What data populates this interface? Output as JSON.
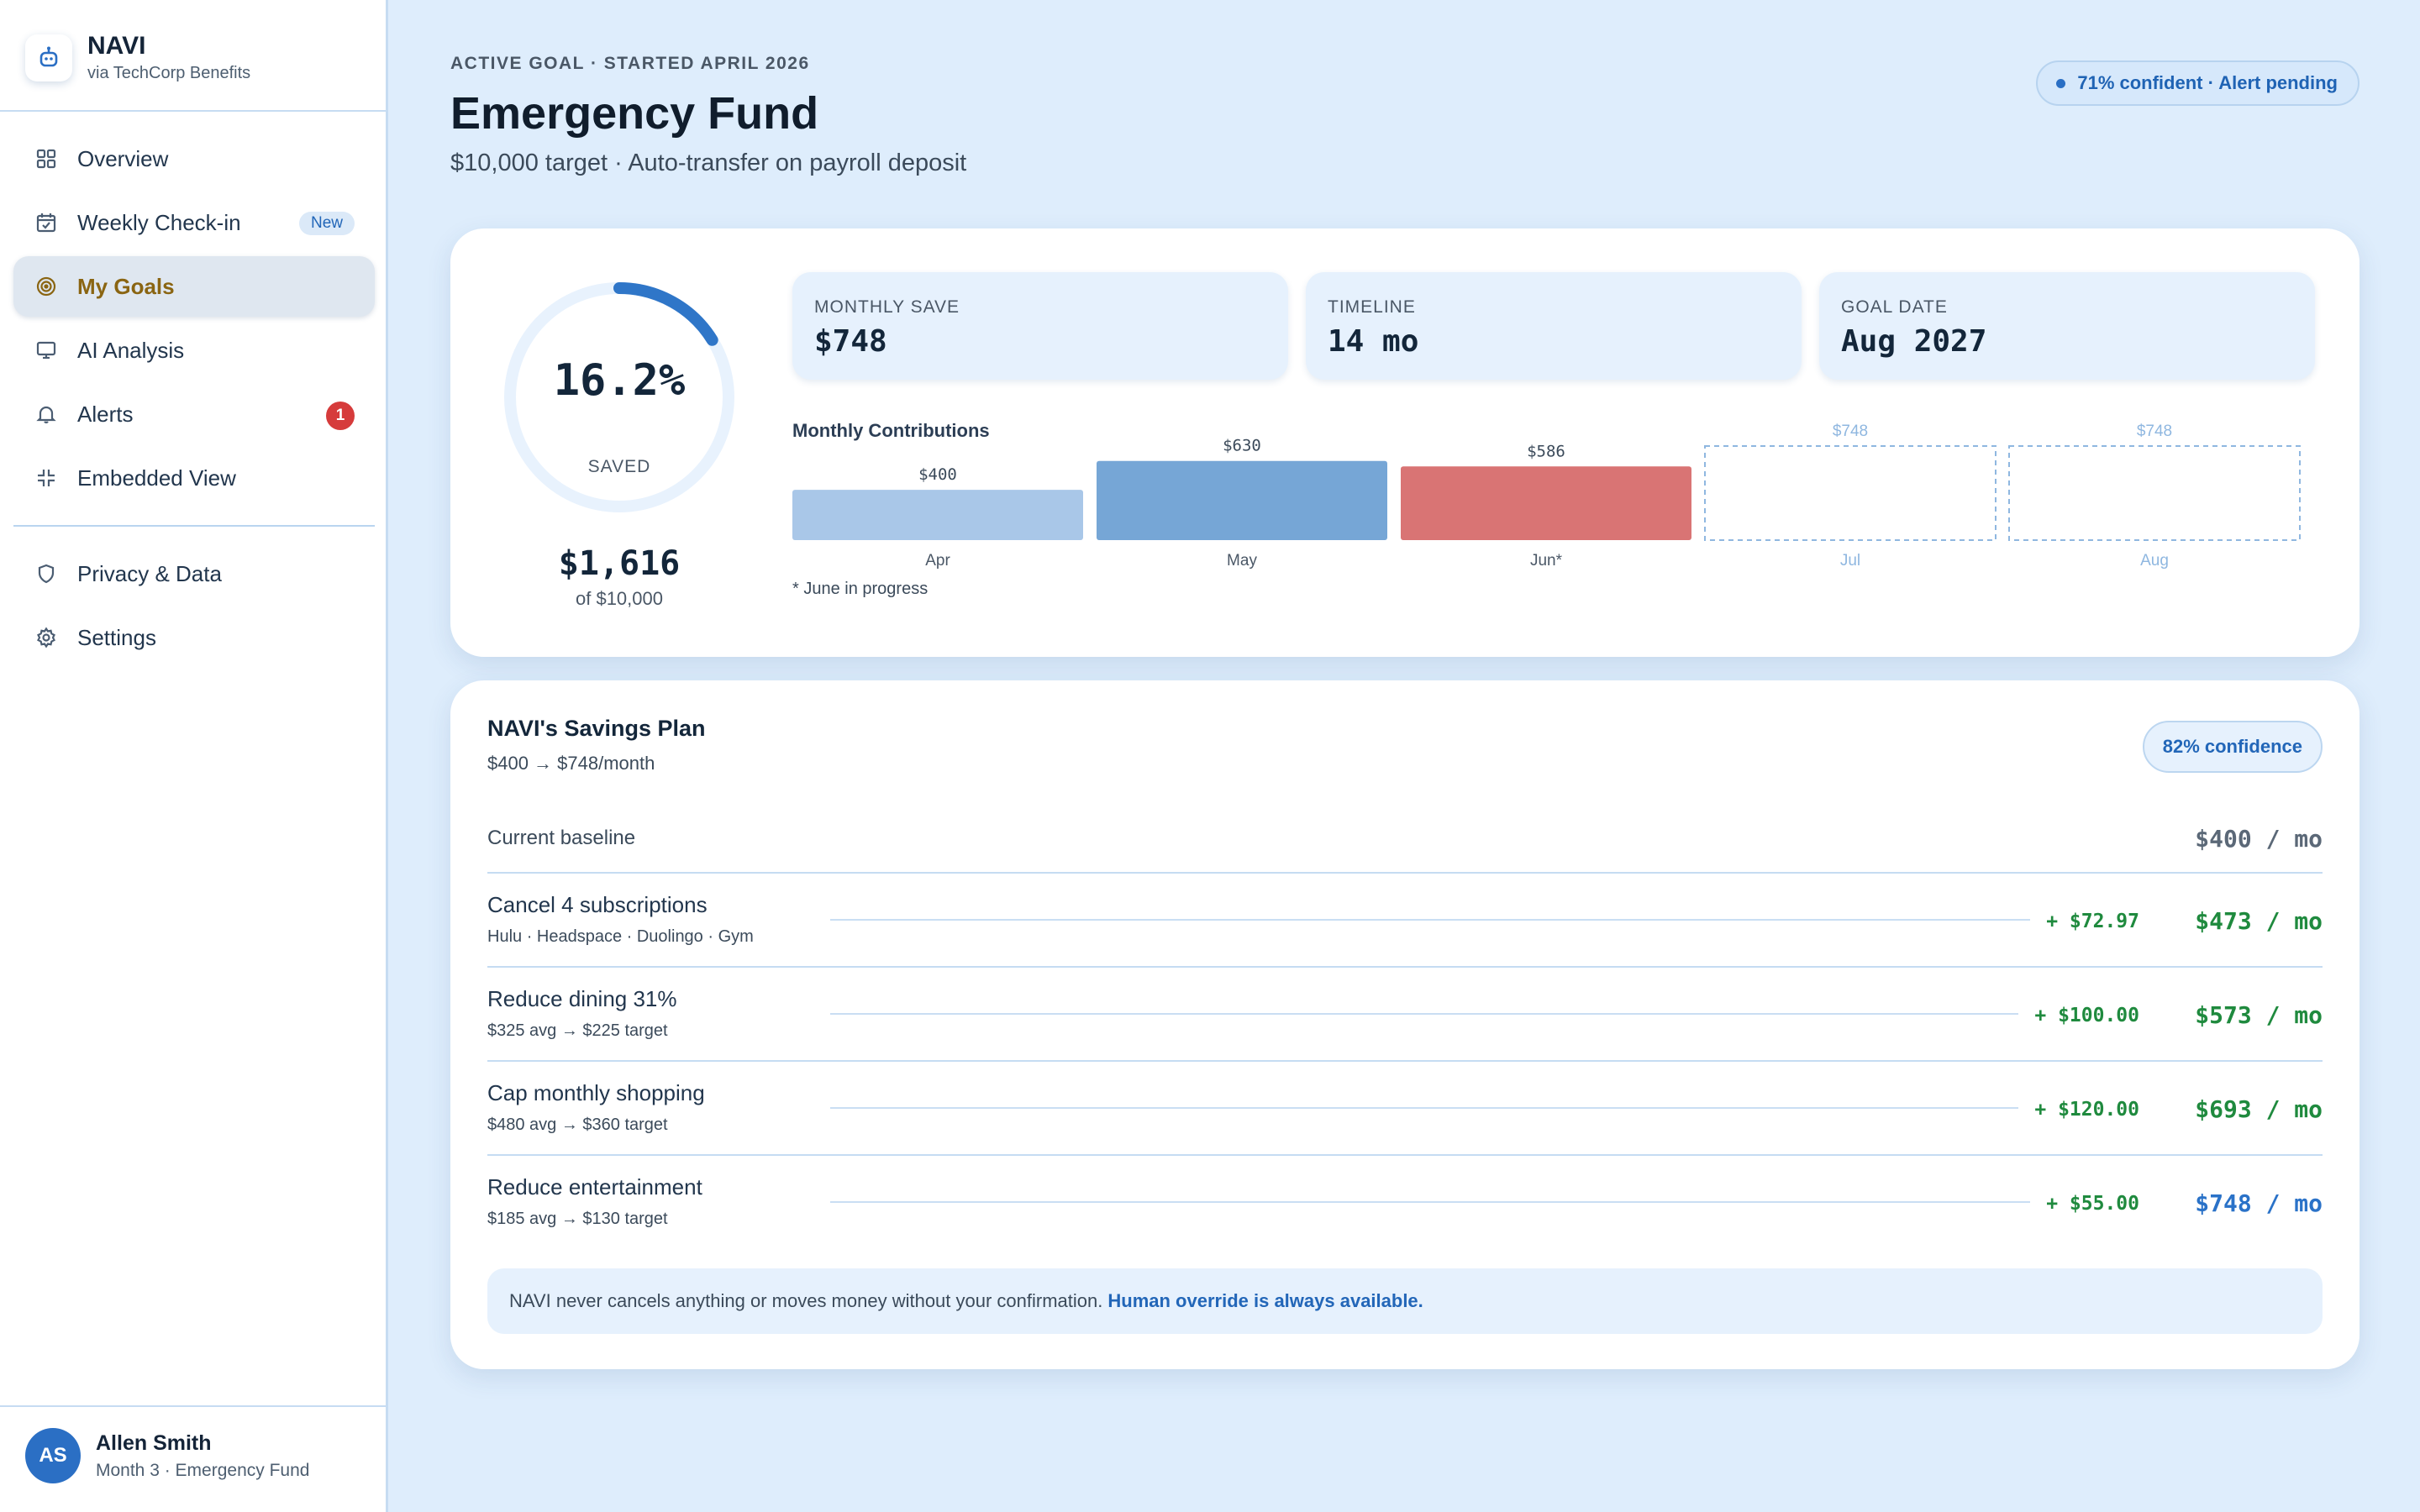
{
  "brand": {
    "name": "NAVI",
    "subtitle": "via TechCorp Benefits"
  },
  "nav": [
    {
      "label": "Overview",
      "icon": "grid-icon"
    },
    {
      "label": "Weekly Check-in",
      "icon": "calendar-icon",
      "badge": "New"
    },
    {
      "label": "My Goals",
      "icon": "target-icon",
      "active": true
    },
    {
      "label": "AI Analysis",
      "icon": "monitor-icon"
    },
    {
      "label": "Alerts",
      "icon": "bell-icon",
      "badge": "1"
    },
    {
      "label": "Embedded View",
      "icon": "compress-icon"
    }
  ],
  "nav_secondary": [
    {
      "label": "Privacy & Data",
      "icon": "shield-icon"
    },
    {
      "label": "Settings",
      "icon": "gear-icon"
    }
  ],
  "user": {
    "initials": "AS",
    "name": "Allen Smith",
    "subtitle": "Month 3 · Emergency Fund"
  },
  "header": {
    "eyebrow": "ACTIVE GOAL · STARTED APRIL 2026",
    "title": "Emergency Fund",
    "subtitle": "$10,000 target · Auto-transfer on payroll deposit",
    "status": "71% confident · Alert pending"
  },
  "progress": {
    "percent_text": "16.2%",
    "fraction": 0.162,
    "label": "SAVED",
    "amount": "$1,616",
    "of": "of $10,000"
  },
  "stats": [
    {
      "label": "MONTHLY SAVE",
      "value": "$748"
    },
    {
      "label": "TIMELINE",
      "value": "14 mo"
    },
    {
      "label": "GOAL DATE",
      "value": "Aug 2027"
    }
  ],
  "chart_data": {
    "type": "bar",
    "title": "Monthly Contributions",
    "categories": [
      "Apr",
      "May",
      "Jun*",
      "Jul",
      "Aug"
    ],
    "values": [
      400,
      630,
      586,
      748,
      748
    ],
    "value_labels": [
      "$400",
      "$630",
      "$586",
      "$748",
      "$748"
    ],
    "status": [
      "actual",
      "actual",
      "in-progress",
      "projected",
      "projected"
    ],
    "colors": {
      "actual_apr": "#a9c7e8",
      "actual_may": "#76a6d6",
      "in_progress": "#d97474",
      "projected": "#8fb7e0"
    },
    "note": "* June in progress"
  },
  "plan": {
    "title": "NAVI's Savings Plan",
    "subtitle": "$400 → $748/month",
    "confidence": "82% confidence",
    "baseline": {
      "label": "Current baseline",
      "total": "$400 / mo"
    },
    "items": [
      {
        "title": "Cancel 4 subscriptions",
        "detail": "Hulu · Headspace · Duolingo · Gym",
        "delta": "+ $72.97",
        "total": "$473 / mo"
      },
      {
        "title": "Reduce dining 31%",
        "detail": "$325 avg → $225 target",
        "delta": "+ $100.00",
        "total": "$573 / mo"
      },
      {
        "title": "Cap monthly shopping",
        "detail": "$480 avg → $360 target",
        "delta": "+ $120.00",
        "total": "$693 / mo"
      },
      {
        "title": "Reduce entertainment",
        "detail": "$185 avg → $130 target",
        "delta": "+ $55.00",
        "total": "$748 / mo"
      }
    ],
    "note": "NAVI never cancels anything or moves money without your confirmation.",
    "note_link": "Human override is always available."
  },
  "theme": {
    "accent": "#2b6fc4",
    "positive": "#1f8a3e",
    "final_total": "#2a72c8"
  }
}
